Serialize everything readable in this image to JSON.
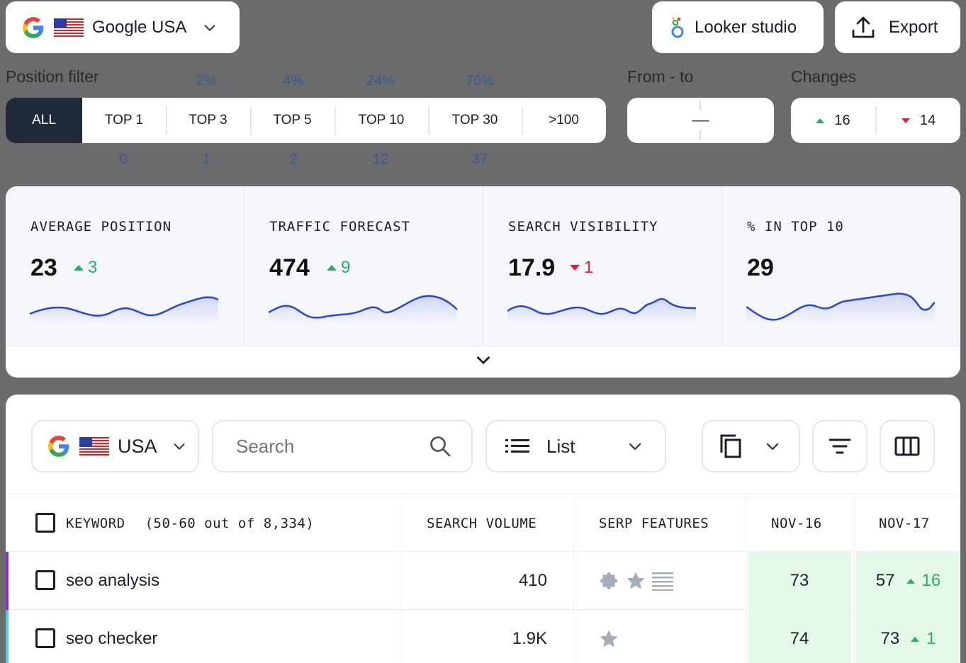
{
  "top_bar": {
    "engine_label": "Google USA",
    "looker_label": "Looker studio",
    "export_label": "Export"
  },
  "filters": {
    "position_filter_label": "Position filter",
    "from_to_label": "From - to",
    "changes_label": "Changes",
    "segments": [
      {
        "label": "ALL",
        "pct": "",
        "count": ""
      },
      {
        "label": "TOP 1",
        "pct": "",
        "count": "0"
      },
      {
        "label": "TOP 3",
        "pct": "2%",
        "count": "1"
      },
      {
        "label": "TOP 5",
        "pct": "4%",
        "count": "2"
      },
      {
        "label": "TOP 10",
        "pct": "24%",
        "count": "12"
      },
      {
        "label": "TOP 30",
        "pct": "76%",
        "count": "37"
      },
      {
        "label": ">100",
        "pct": "",
        "count": ""
      }
    ],
    "range_separator": "—",
    "changes_up": "16",
    "changes_down": "14"
  },
  "metrics": [
    {
      "title": "AVERAGE POSITION",
      "value": "23",
      "delta": "3",
      "direction": "up"
    },
    {
      "title": "TRAFFIC FORECAST",
      "value": "474",
      "delta": "9",
      "direction": "up"
    },
    {
      "title": "SEARCH VISIBILITY",
      "value": "17.9",
      "delta": "1",
      "direction": "down"
    },
    {
      "title": "% IN TOP 10",
      "value": "29",
      "delta": "",
      "direction": "none"
    }
  ],
  "table_controls": {
    "region_label": "USA",
    "search_placeholder": "Search",
    "view_label": "List"
  },
  "table": {
    "columns": {
      "keyword": "KEYWORD",
      "keyword_count": "(50-60 out of 8,334)",
      "volume": "SEARCH VOLUME",
      "serp": "SERP FEATURES",
      "date1": "NOV-16",
      "date2": "NOV-17"
    },
    "rows": [
      {
        "keyword": "seo analysis",
        "volume": "410",
        "serp": [
          "puzzle-icon",
          "star-icon",
          "list-icon"
        ],
        "pos1": "73",
        "pos2": "57",
        "change": "16",
        "accent": "#8a2be2"
      },
      {
        "keyword": "seo checker",
        "volume": "1.9K",
        "serp": [
          "star-icon"
        ],
        "pos1": "74",
        "pos2": "73",
        "change": "1",
        "accent": "#4cc9e6"
      }
    ]
  },
  "colors": {
    "up": "#22b35e",
    "down": "#e0223a",
    "sparkline": "#2a46d6",
    "active_segment": "#1f2937",
    "position_cell": "#e6f9e8"
  }
}
